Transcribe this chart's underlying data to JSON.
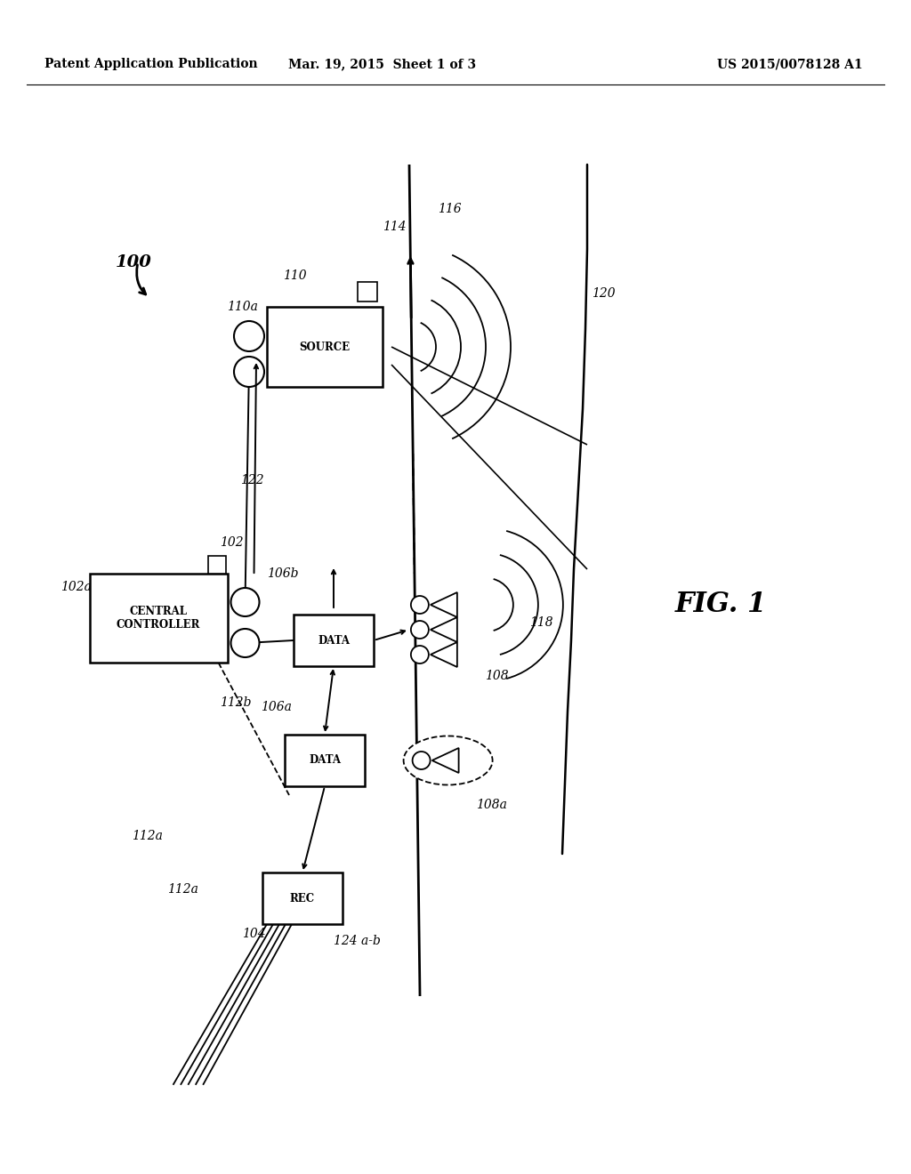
{
  "bg_color": "#ffffff",
  "header_left": "Patent Application Publication",
  "header_mid": "Mar. 19, 2015  Sheet 1 of 3",
  "header_right": "US 2015/0078128 A1",
  "fig_label": "FIG. 1",
  "line_color": "#000000",
  "text_color": "#000000"
}
